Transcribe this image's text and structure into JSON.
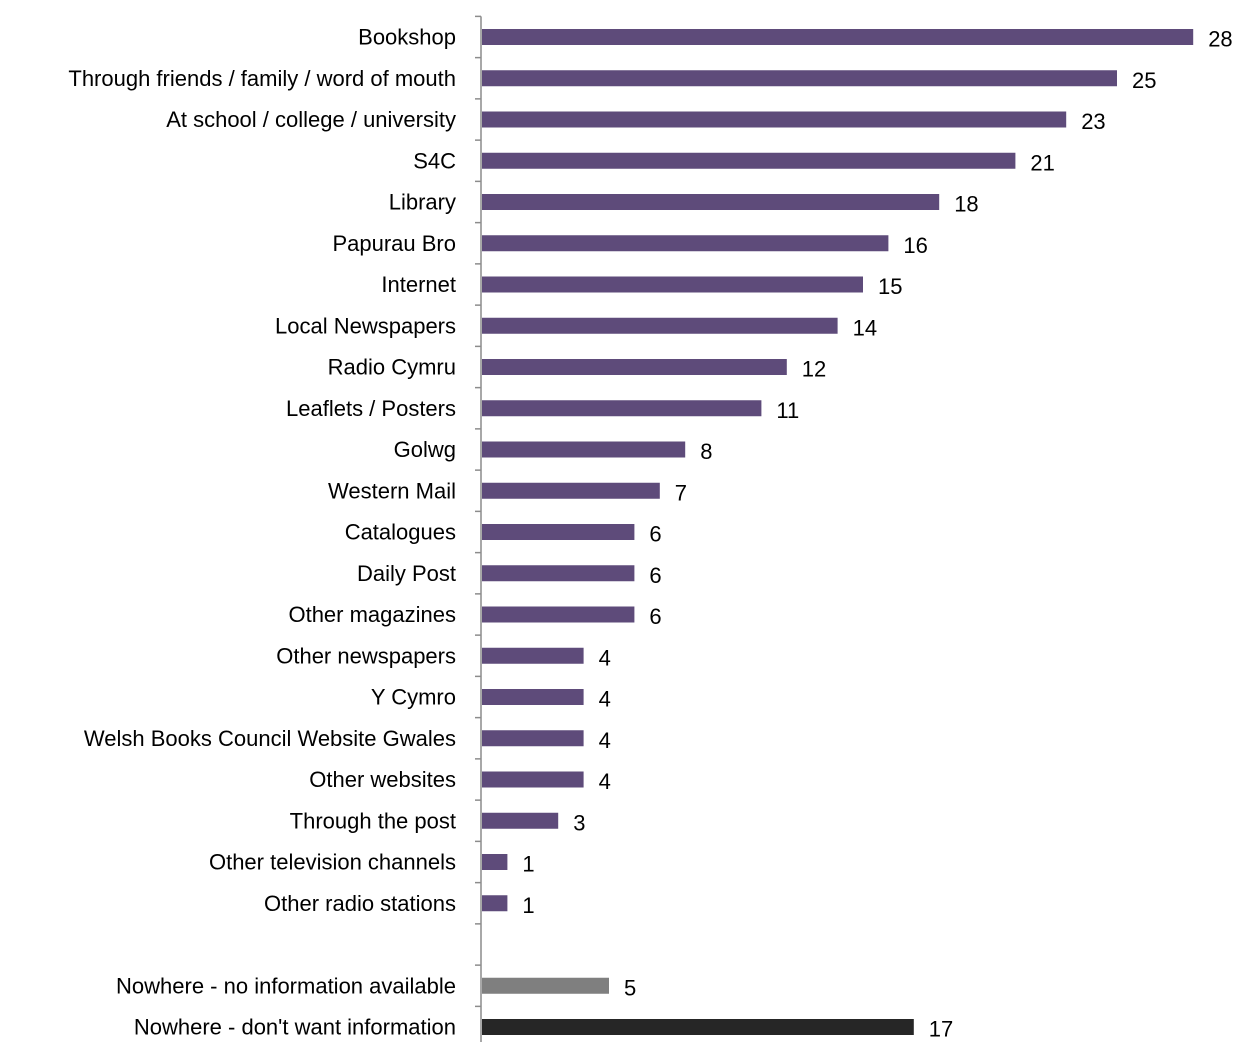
{
  "chart_data": {
    "type": "bar",
    "orientation": "horizontal",
    "categories": [
      "Bookshop",
      "Through friends / family / word of mouth",
      "At school / college / university",
      "S4C",
      "Library",
      "Papurau Bro",
      "Internet",
      "Local Newspapers",
      "Radio Cymru",
      "Leaflets / Posters",
      "Golwg",
      "Western Mail",
      "Catalogues",
      "Daily Post",
      "Other magazines",
      "Other newspapers",
      "Y Cymro",
      "Welsh Books Council Website Gwales",
      "Other websites",
      "Through the post",
      "Other television channels",
      "Other radio stations",
      "",
      "Nowhere - no information available",
      "Nowhere - don't want information"
    ],
    "values": [
      28,
      25,
      23,
      21,
      18,
      16,
      15,
      14,
      12,
      11,
      8,
      7,
      6,
      6,
      6,
      4,
      4,
      4,
      4,
      3,
      1,
      1,
      null,
      5,
      17
    ],
    "bar_colors": [
      "#5e4b7a",
      "#5e4b7a",
      "#5e4b7a",
      "#5e4b7a",
      "#5e4b7a",
      "#5e4b7a",
      "#5e4b7a",
      "#5e4b7a",
      "#5e4b7a",
      "#5e4b7a",
      "#5e4b7a",
      "#5e4b7a",
      "#5e4b7a",
      "#5e4b7a",
      "#5e4b7a",
      "#5e4b7a",
      "#5e4b7a",
      "#5e4b7a",
      "#5e4b7a",
      "#5e4b7a",
      "#5e4b7a",
      "#5e4b7a",
      "",
      "#7f7f7f",
      "#262626"
    ],
    "xlim": [
      0,
      28
    ],
    "x_axis_visible": false,
    "grid": false,
    "legend": "none",
    "data_labels": true
  }
}
